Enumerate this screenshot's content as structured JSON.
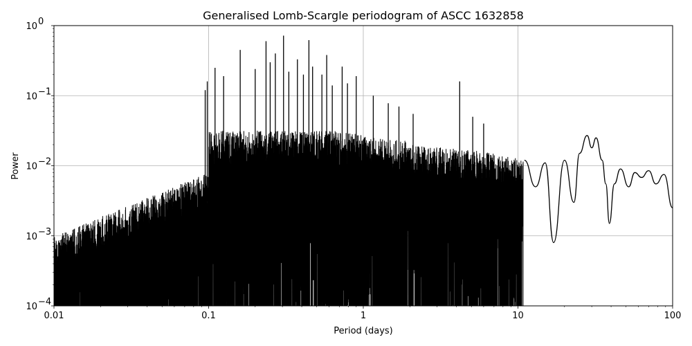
{
  "chart_data": {
    "type": "line",
    "title": "Generalised Lomb-Scargle periodogram of ASCC 1632858",
    "xlabel": "Period (days)",
    "ylabel": "Power",
    "xscale": "log",
    "yscale": "log",
    "xlim": [
      0.01,
      100
    ],
    "ylim": [
      0.0001,
      1
    ],
    "grid": "major",
    "x_ticks": [
      {
        "value": 0.01,
        "label": "0.01"
      },
      {
        "value": 0.1,
        "label": "0.1"
      },
      {
        "value": 1,
        "label": "1"
      },
      {
        "value": 10,
        "label": "10"
      },
      {
        "value": 100,
        "label": "100"
      }
    ],
    "y_ticks": [
      {
        "value": 0.0001,
        "base": "10",
        "exp": "−4"
      },
      {
        "value": 0.001,
        "base": "10",
        "exp": "−3"
      },
      {
        "value": 0.01,
        "base": "10",
        "exp": "−2"
      },
      {
        "value": 0.1,
        "base": "10",
        "exp": "−1"
      },
      {
        "value": 1,
        "base": "10",
        "exp": "0"
      }
    ],
    "line_color": "#000000",
    "peaks": [
      {
        "period": 0.095,
        "power": 0.12
      },
      {
        "period": 0.098,
        "power": 0.16
      },
      {
        "period": 0.11,
        "power": 0.25
      },
      {
        "period": 0.125,
        "power": 0.19
      },
      {
        "period": 0.16,
        "power": 0.45
      },
      {
        "period": 0.2,
        "power": 0.24
      },
      {
        "period": 0.235,
        "power": 0.6
      },
      {
        "period": 0.25,
        "power": 0.3
      },
      {
        "period": 0.27,
        "power": 0.4
      },
      {
        "period": 0.305,
        "power": 0.72
      },
      {
        "period": 0.33,
        "power": 0.22
      },
      {
        "period": 0.375,
        "power": 0.33
      },
      {
        "period": 0.41,
        "power": 0.2
      },
      {
        "period": 0.445,
        "power": 0.62
      },
      {
        "period": 0.47,
        "power": 0.26
      },
      {
        "period": 0.54,
        "power": 0.2
      },
      {
        "period": 0.58,
        "power": 0.38
      },
      {
        "period": 0.63,
        "power": 0.14
      },
      {
        "period": 0.73,
        "power": 0.26
      },
      {
        "period": 0.79,
        "power": 0.15
      },
      {
        "period": 0.9,
        "power": 0.19
      },
      {
        "period": 1.16,
        "power": 0.1
      },
      {
        "period": 1.45,
        "power": 0.078
      },
      {
        "period": 1.7,
        "power": 0.07
      },
      {
        "period": 2.1,
        "power": 0.055
      },
      {
        "period": 4.2,
        "power": 0.16
      },
      {
        "period": 5.1,
        "power": 0.05
      },
      {
        "period": 6.0,
        "power": 0.04
      }
    ],
    "long_period_curve": [
      {
        "period": 11.0,
        "power": 0.012
      },
      {
        "period": 13.0,
        "power": 0.005
      },
      {
        "period": 15.0,
        "power": 0.011
      },
      {
        "period": 17.0,
        "power": 0.0008
      },
      {
        "period": 20.0,
        "power": 0.012
      },
      {
        "period": 23.0,
        "power": 0.003
      },
      {
        "period": 25.0,
        "power": 0.015
      },
      {
        "period": 28.0,
        "power": 0.027
      },
      {
        "period": 30.0,
        "power": 0.018
      },
      {
        "period": 32.0,
        "power": 0.025
      },
      {
        "period": 35.0,
        "power": 0.012
      },
      {
        "period": 37.0,
        "power": 0.0055
      },
      {
        "period": 39.0,
        "power": 0.0015
      },
      {
        "period": 42.0,
        "power": 0.0055
      },
      {
        "period": 46.0,
        "power": 0.009
      },
      {
        "period": 52.0,
        "power": 0.005
      },
      {
        "period": 57.0,
        "power": 0.008
      },
      {
        "period": 63.0,
        "power": 0.0068
      },
      {
        "period": 70.0,
        "power": 0.0085
      },
      {
        "period": 78.0,
        "power": 0.0055
      },
      {
        "period": 88.0,
        "power": 0.0075
      },
      {
        "period": 100.0,
        "power": 0.0025
      }
    ]
  }
}
